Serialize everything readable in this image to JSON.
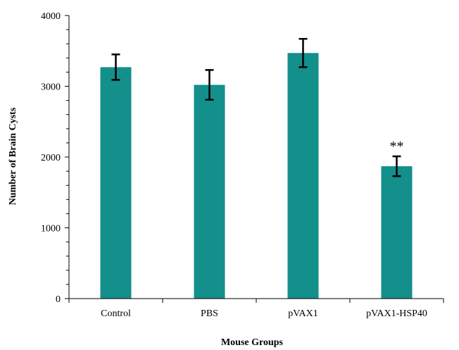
{
  "chart_data": {
    "type": "bar",
    "categories": [
      "Control",
      "PBS",
      "pVAX1",
      "pVAX1-HSP40"
    ],
    "values": [
      3270,
      3020,
      3470,
      1870
    ],
    "errors": [
      180,
      210,
      200,
      140
    ],
    "annotations": [
      {
        "category_index": 3,
        "text": "**"
      }
    ],
    "xlabel": "Mouse Groups",
    "ylabel": "Number of Brain Cysts",
    "ylim": [
      0,
      4000
    ],
    "y_ticks": [
      "0",
      "1000",
      "2000",
      "3000",
      "4000"
    ],
    "grid": false,
    "legend": "none",
    "bar_color": "#138f8c"
  }
}
